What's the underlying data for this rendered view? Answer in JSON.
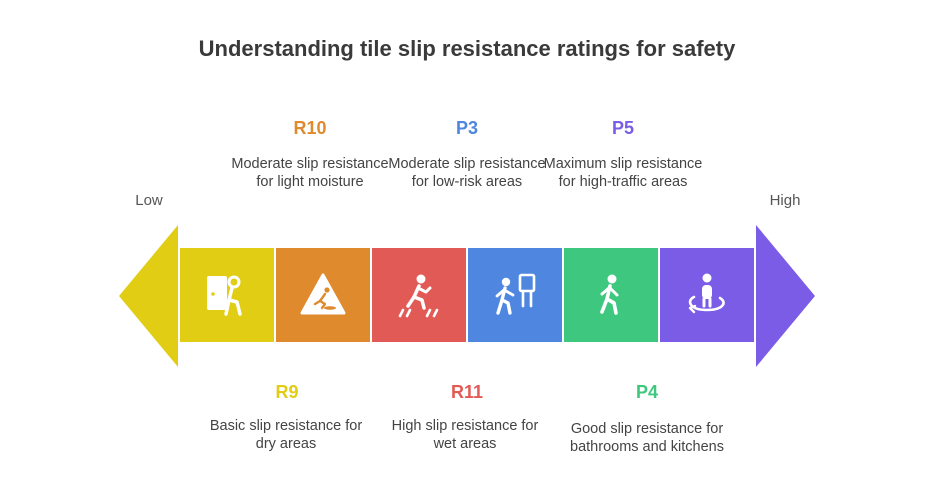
{
  "title": "Understanding tile slip resistance ratings for safety",
  "scale": {
    "low": "Low",
    "high": "High"
  },
  "colors": {
    "left_arrow": "#e0cd14",
    "right_arrow": "#7b5ce6"
  },
  "ratings": [
    {
      "code": "R9",
      "description": "Basic slip resistance for dry areas",
      "color": "#e0cd14",
      "icon": "person-exiting-door-icon",
      "position": "below"
    },
    {
      "code": "R10",
      "description": "Moderate slip resistance for light moisture",
      "color": "#e08a2e",
      "icon": "wet-floor-warning-icon",
      "position": "above"
    },
    {
      "code": "R11",
      "description": "High slip resistance for wet areas",
      "color": "#e25a55",
      "icon": "person-walking-wet-floor-icon",
      "position": "below"
    },
    {
      "code": "P3",
      "description": "Moderate slip resistance for low-risk areas",
      "color": "#4f87e0",
      "icon": "person-with-sign-icon",
      "position": "above"
    },
    {
      "code": "P4",
      "description": "Good slip resistance for bathrooms and kitchens",
      "color": "#3dc77f",
      "icon": "person-walking-icon",
      "position": "below"
    },
    {
      "code": "P5",
      "description": "Maximum slip resistance for high-traffic areas",
      "color": "#7b5ce6",
      "icon": "person-rotating-icon",
      "position": "above"
    }
  ]
}
